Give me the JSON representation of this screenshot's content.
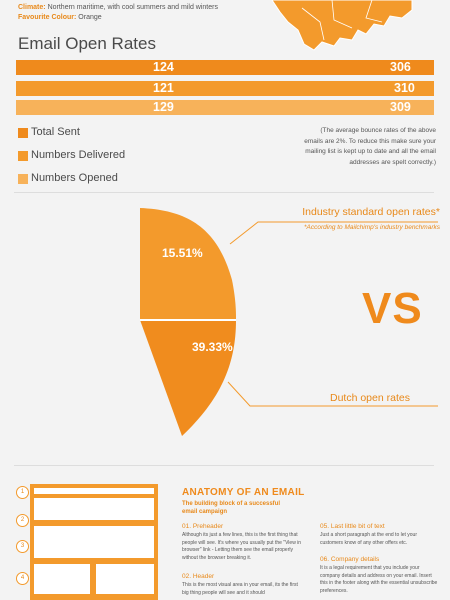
{
  "country_info": {
    "climate_key": "Climate:",
    "climate_value": "Northern maritime, with cool summers and mild winters",
    "colour_key": "Favourite Colour:",
    "colour_value": "Orange"
  },
  "section_title": "Email Open Rates",
  "colors": {
    "total_sent": "#ef8a1c",
    "delivered": "#f39a2c",
    "opened": "#f7b25a",
    "background": "#f3f3f3"
  },
  "chart_data": [
    {
      "type": "bar",
      "title": "Email Open Rates",
      "series": [
        {
          "name": "Total Sent",
          "values": [
            124,
            306
          ]
        },
        {
          "name": "Numbers Delivered",
          "values": [
            121,
            310
          ]
        },
        {
          "name": "Numbers Opened",
          "values": [
            129,
            309
          ]
        }
      ],
      "legend_position": "bottom-left"
    },
    {
      "type": "pie",
      "slices": [
        {
          "label": "15.51%",
          "value": 15.51,
          "name": "Industry standard open rates*"
        },
        {
          "label": "39.33%",
          "value": 39.33,
          "name": "Dutch open rates"
        }
      ]
    }
  ],
  "legend": [
    "Total Sent",
    "Numbers Delivered",
    "Numbers Opened"
  ],
  "bounce_note": "(The average bounce rates of the above emails are 2%. To reduce this make sure your mailing list is kept up to date and all the email addresses are spelt correctly.)",
  "comparison": {
    "callout_industry": "Industry standard open rates*",
    "callout_industry_note": "*According to Mailchimp's industry benchmarks",
    "vs": "VS",
    "callout_dutch": "Dutch open rates"
  },
  "anatomy": {
    "title": "ANATOMY OF AN EMAIL",
    "subtitle": "The building block of a successful email campaign",
    "markers": [
      "1",
      "2",
      "3",
      "4"
    ],
    "sections": [
      {
        "head": "01. Preheader",
        "body": "Although its just a few lines, this is the first thing that people will see. It's where you usually put the \"View in browser\" link - Letting them see the email properly without the browser breaking it."
      },
      {
        "head": "02. Header",
        "body": "This is the most visual area in your email, its the first big thing people will see and it should"
      },
      {
        "head": "05. Last little bit of text",
        "body": "Just a short paragraph at the end to let your customers know of any other offers etc."
      },
      {
        "head": "06. Company details",
        "body": "It is a legal requirement that you include your company details and address on your email. Insert this in the footer along with the essential unsubscribe preferences."
      }
    ]
  }
}
